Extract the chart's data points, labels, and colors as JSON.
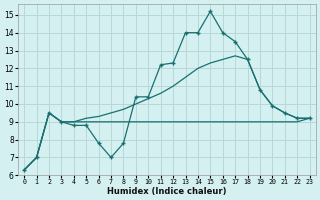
{
  "background_color": "#d5f0f0",
  "grid_color": "#b8d8d8",
  "line_color": "#1a7070",
  "xlabel": "Humidex (Indice chaleur)",
  "xlim": [
    -0.5,
    23.5
  ],
  "ylim": [
    6,
    15.6
  ],
  "yticks": [
    6,
    7,
    8,
    9,
    10,
    11,
    12,
    13,
    14,
    15
  ],
  "xticks": [
    0,
    1,
    2,
    3,
    4,
    5,
    6,
    7,
    8,
    9,
    10,
    11,
    12,
    13,
    14,
    15,
    16,
    17,
    18,
    19,
    20,
    21,
    22,
    23
  ],
  "line1_x": [
    0,
    1,
    2,
    3,
    4,
    5,
    6,
    7,
    8,
    9,
    10,
    11,
    12,
    13,
    14,
    15,
    16,
    17,
    18,
    19,
    20,
    21,
    22,
    23
  ],
  "line1_y": [
    6.3,
    7.0,
    9.5,
    9.0,
    8.8,
    8.8,
    7.8,
    7.0,
    7.8,
    10.4,
    10.4,
    12.2,
    12.3,
    14.0,
    14.0,
    15.2,
    14.0,
    13.5,
    12.5,
    10.8,
    9.9,
    9.5,
    9.2,
    9.2
  ],
  "line2_x": [
    0,
    1,
    2,
    3,
    4,
    5,
    6,
    7,
    8,
    9,
    10,
    11,
    12,
    13,
    14,
    15,
    16,
    17,
    18,
    19,
    20,
    21,
    22,
    23
  ],
  "line2_y": [
    6.3,
    7.0,
    9.5,
    9.0,
    9.0,
    9.0,
    9.0,
    9.0,
    9.0,
    9.0,
    9.0,
    9.0,
    9.0,
    9.0,
    9.0,
    9.0,
    9.0,
    9.0,
    9.0,
    9.0,
    9.0,
    9.0,
    9.0,
    9.2
  ],
  "line3_x": [
    0,
    1,
    2,
    3,
    4,
    5,
    6,
    7,
    8,
    9,
    10,
    11,
    12,
    13,
    14,
    15,
    16,
    17,
    18,
    19,
    20,
    21,
    22,
    23
  ],
  "line3_y": [
    6.3,
    7.0,
    9.5,
    9.0,
    9.0,
    9.2,
    9.3,
    9.5,
    9.7,
    10.0,
    10.3,
    10.6,
    11.0,
    11.5,
    12.0,
    12.3,
    12.5,
    12.7,
    12.5,
    10.8,
    9.9,
    9.5,
    9.2,
    9.2
  ]
}
